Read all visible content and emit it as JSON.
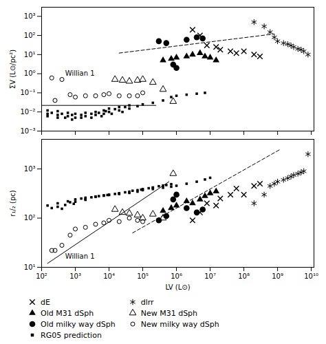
{
  "chart_data": [
    {
      "type": "scatter",
      "log": true,
      "ylabel": "ΣV (L⊙/pc²)",
      "xlim": [
        100,
        12000000000
      ],
      "ylim": [
        0.001,
        3000
      ],
      "xticks": [
        {
          "value": 100,
          "label": "10²"
        },
        {
          "value": 1000,
          "label": "10³"
        },
        {
          "value": 10000,
          "label": "10⁴"
        },
        {
          "value": 100000,
          "label": "10⁵"
        },
        {
          "value": 1000000,
          "label": "10⁶"
        },
        {
          "value": 10000000,
          "label": "10⁷"
        },
        {
          "value": 100000000,
          "label": "10⁸"
        },
        {
          "value": 1000000000,
          "label": "10⁹"
        },
        {
          "value": 10000000000,
          "label": "10¹⁰"
        }
      ],
      "yticks": [
        {
          "value": 0.001,
          "label": "10⁻³"
        },
        {
          "value": 0.01,
          "label": "10⁻²"
        },
        {
          "value": 0.1,
          "label": "10⁻¹"
        },
        {
          "value": 1,
          "label": "10⁰"
        },
        {
          "value": 10,
          "label": "10¹"
        },
        {
          "value": 100,
          "label": "10²"
        },
        {
          "value": 1000,
          "label": "10³"
        }
      ],
      "tick_labels": "y",
      "series": [
        {
          "name": "dE",
          "marker": "x",
          "color": "black",
          "x": [
            3000000.0,
            5000000.0,
            8000000.0,
            15000000.0,
            20000000.0,
            40000000.0,
            60000000.0,
            100000000.0,
            200000000.0,
            300000000.0
          ],
          "values": [
            200,
            100,
            30,
            25,
            18,
            15,
            12,
            15,
            10,
            8
          ]
        },
        {
          "name": "dlrr",
          "marker": "asterisk",
          "color": "black",
          "x": [
            200000000.0,
            400000000.0,
            600000000.0,
            800000000.0,
            1000000000.0,
            1500000000.0,
            2000000000.0,
            2500000000.0,
            3000000000.0,
            4000000000.0,
            5000000000.0,
            6000000000.0,
            8000000000.0
          ],
          "values": [
            500,
            300,
            150,
            80,
            50,
            40,
            35,
            30,
            25,
            20,
            18,
            15,
            10
          ]
        },
        {
          "name": "Old M31 dSph",
          "marker": "triangle",
          "color": "black",
          "x": [
            400000.0,
            700000.0,
            1000000.0,
            2000000.0,
            3000000.0,
            5000000.0,
            7000000.0,
            10000000.0,
            15000000.0
          ],
          "values": [
            5,
            6,
            7,
            8,
            10,
            12,
            8,
            7,
            5
          ]
        },
        {
          "name": "New M31 dSph",
          "marker": "open_triangle",
          "color": "black",
          "x": [
            15000.0,
            25000.0,
            40000.0,
            70000.0,
            100000.0,
            200000.0,
            400000.0,
            800000.0
          ],
          "values": [
            0.5,
            0.45,
            0.4,
            0.45,
            0.5,
            0.35,
            0.15,
            0.035
          ]
        },
        {
          "name": "Old milky way dSph",
          "marker": "circle",
          "color": "black",
          "x": [
            300000.0,
            500000.0,
            800000.0,
            1000000.0,
            2000000.0,
            4000000.0,
            6000000.0
          ],
          "values": [
            50,
            40,
            3,
            2,
            60,
            80,
            70
          ]
        },
        {
          "name": "New milky way dSph",
          "marker": "open_circle",
          "color": "black",
          "x": [
            200.0,
            400.0,
            700.0,
            1000.0,
            2000.0,
            4000.0,
            7000.0,
            10000.0,
            20000.0,
            40000.0,
            70000.0,
            100000.0
          ],
          "values": [
            0.6,
            0.5,
            0.08,
            0.06,
            0.07,
            0.07,
            0.08,
            0.09,
            0.07,
            0.07,
            0.07,
            0.1
          ]
        },
        {
          "name": "RG05 prediction",
          "marker": "square",
          "color": "black",
          "x": [
            150.0,
            300.0,
            600.0,
            1000.0,
            2000.0,
            4000.0,
            7000.0,
            10000.0,
            20000.0,
            40000.0,
            70000.0,
            100000.0,
            200000.0,
            400000.0,
            700000.0,
            1000000.0,
            2000000.0,
            4000000.0,
            7000000.0,
            150.0,
            300.0,
            600.0,
            1000.0,
            2000.0,
            4000.0,
            7000.0,
            10000.0,
            20000.0,
            40000.0,
            150.0,
            300.0,
            500.0,
            800.0,
            1500.0,
            3000.0,
            6000.0,
            12000.0,
            25000.0,
            200.0,
            400.0,
            800.0,
            1500.0,
            3000.0,
            5000.0,
            8000.0,
            15000.0,
            30000.0
          ],
          "values": [
            0.008,
            0.007,
            0.006,
            0.005,
            0.006,
            0.007,
            0.008,
            0.01,
            0.012,
            0.015,
            0.02,
            0.025,
            0.03,
            0.04,
            0.06,
            0.07,
            0.08,
            0.09,
            0.1,
            0.012,
            0.011,
            0.009,
            0.008,
            0.009,
            0.01,
            0.012,
            0.015,
            0.018,
            0.022,
            0.006,
            0.005,
            0.005,
            0.004,
            0.005,
            0.005,
            0.006,
            0.008,
            0.01,
            0.009,
            0.008,
            0.007,
            0.007,
            0.008,
            0.009,
            0.011,
            0.014,
            0.018
          ]
        }
      ],
      "lines": [
        {
          "x": [
            20000.0,
            800000000.0
          ],
          "values": [
            12,
            120
          ],
          "line_style": "dashed",
          "color": "black"
        },
        {
          "x": [
            100,
            247300
          ],
          "values": [
            0.022,
            0.022
          ],
          "line_style": "solid",
          "color": "black"
        }
      ],
      "annotations": [
        {
          "text": "Willian 1",
          "x": 500,
          "y": 0.8,
          "marker": "open_circle",
          "point": [
            250,
            0.04
          ]
        }
      ]
    },
    {
      "type": "scatter",
      "log": true,
      "xlabel": "LV (L⊙)",
      "ylabel": "r₁/₂ (pc)",
      "xlim": [
        100,
        12000000000
      ],
      "ylim": [
        10,
        4000
      ],
      "xticks": [
        {
          "value": 100,
          "label": "10²"
        },
        {
          "value": 1000,
          "label": "10³"
        },
        {
          "value": 10000,
          "label": "10⁴"
        },
        {
          "value": 100000,
          "label": "10⁵"
        },
        {
          "value": 1000000,
          "label": "10⁶"
        },
        {
          "value": 10000000,
          "label": "10⁷"
        },
        {
          "value": 100000000,
          "label": "10⁸"
        },
        {
          "value": 1000000000,
          "label": "10⁹"
        },
        {
          "value": 10000000000,
          "label": "10¹⁰"
        }
      ],
      "yticks": [
        {
          "value": 10,
          "label": "10¹"
        },
        {
          "value": 100,
          "label": "10²"
        },
        {
          "value": 1000,
          "label": "10³"
        }
      ],
      "legend": "lower left",
      "series": [
        {
          "name": "dE",
          "marker": "x",
          "color": "black",
          "x": [
            3000000.0,
            5000000.0,
            8000000.0,
            15000000.0,
            20000000.0,
            40000000.0,
            60000000.0,
            100000000.0,
            200000000.0,
            300000000.0
          ],
          "values": [
            90,
            130,
            200,
            180,
            250,
            300,
            400,
            300,
            450,
            500
          ]
        },
        {
          "name": "dlrr",
          "marker": "asterisk",
          "color": "black",
          "x": [
            200000000.0,
            400000000.0,
            600000000.0,
            800000000.0,
            1000000000.0,
            1500000000.0,
            2000000000.0,
            2500000000.0,
            3000000000.0,
            4000000000.0,
            5000000000.0,
            6000000000.0,
            8000000000.0
          ],
          "values": [
            200,
            300,
            450,
            500,
            550,
            600,
            650,
            700,
            750,
            800,
            850,
            900,
            2000
          ]
        },
        {
          "name": "Old M31 dSph",
          "marker": "triangle",
          "color": "black",
          "x": [
            400000.0,
            700000.0,
            1000000.0,
            2000000.0,
            3000000.0,
            5000000.0,
            7000000.0,
            10000000.0,
            15000000.0
          ],
          "values": [
            140,
            160,
            180,
            220,
            200,
            240,
            280,
            320,
            350
          ]
        },
        {
          "name": "New M31 dSph",
          "marker": "open_triangle",
          "color": "black",
          "x": [
            15000.0,
            25000.0,
            40000.0,
            70000.0,
            100000.0,
            200000.0,
            400000.0,
            800000.0
          ],
          "values": [
            150,
            130,
            125,
            115,
            100,
            120,
            100,
            800
          ]
        },
        {
          "name": "Old milky way dSph",
          "marker": "circle",
          "color": "black",
          "x": [
            300000.0,
            500000.0,
            800000.0,
            1000000.0,
            2000000.0,
            4000000.0,
            6000000.0
          ],
          "values": [
            90,
            110,
            240,
            300,
            160,
            130,
            150
          ]
        },
        {
          "name": "New milky way dSph",
          "marker": "open_circle",
          "color": "black",
          "x": [
            200.0,
            400.0,
            700.0,
            1000.0,
            2000.0,
            4000.0,
            7000.0,
            10000.0,
            20000.0,
            40000.0,
            70000.0,
            100000.0
          ],
          "values": [
            22,
            28,
            45,
            60,
            65,
            75,
            80,
            90,
            85,
            100,
            90,
            85
          ]
        },
        {
          "name": "RG05 prediction",
          "marker": "square",
          "color": "black",
          "x": [
            150.0,
            300.0,
            600.0,
            1000.0,
            2000.0,
            4000.0,
            7000.0,
            10000.0,
            20000.0,
            40000.0,
            70000.0,
            100000.0,
            200000.0,
            400000.0,
            700000.0,
            1000000.0,
            2000000.0,
            4000000.0,
            7000000.0,
            10000000.0,
            200.0,
            500.0,
            1000.0,
            2000.0,
            5000.0,
            10000.0,
            20000.0,
            50000.0,
            100000.0,
            200000.0,
            500000.0,
            300.0,
            700.0,
            1500.0,
            3000.0,
            7000.0,
            15000.0,
            30000.0,
            70000.0,
            150000.0,
            300000.0,
            700000.0,
            400.0,
            900.0,
            2000.0,
            4000.0,
            9000.0,
            20000.0,
            40000.0,
            90000.0,
            200000.0,
            400000.0
          ],
          "values": [
            180,
            200,
            220,
            240,
            260,
            275,
            285,
            295,
            310,
            325,
            345,
            370,
            390,
            415,
            435,
            455,
            500,
            550,
            610,
            660,
            160,
            185,
            215,
            245,
            280,
            300,
            320,
            360,
            390,
            420,
            470,
            170,
            210,
            250,
            265,
            290,
            310,
            335,
            370,
            405,
            445,
            490,
            155,
            195,
            235,
            270,
            295,
            315,
            345,
            380,
            415,
            460
          ]
        }
      ],
      "lines": [
        {
          "x": [
            50000.0,
            1200000000.0
          ],
          "values": [
            50,
            2500
          ],
          "line_style": "dashed",
          "color": "black"
        },
        {
          "x": [
            150.0,
            600000.0
          ],
          "values": [
            12,
            550
          ],
          "line_style": "solid",
          "color": "black"
        }
      ],
      "annotations": [
        {
          "text": "Willian 1",
          "x": 500,
          "y": 15,
          "marker": "open_circle",
          "point": [
            250,
            22
          ]
        }
      ]
    }
  ]
}
